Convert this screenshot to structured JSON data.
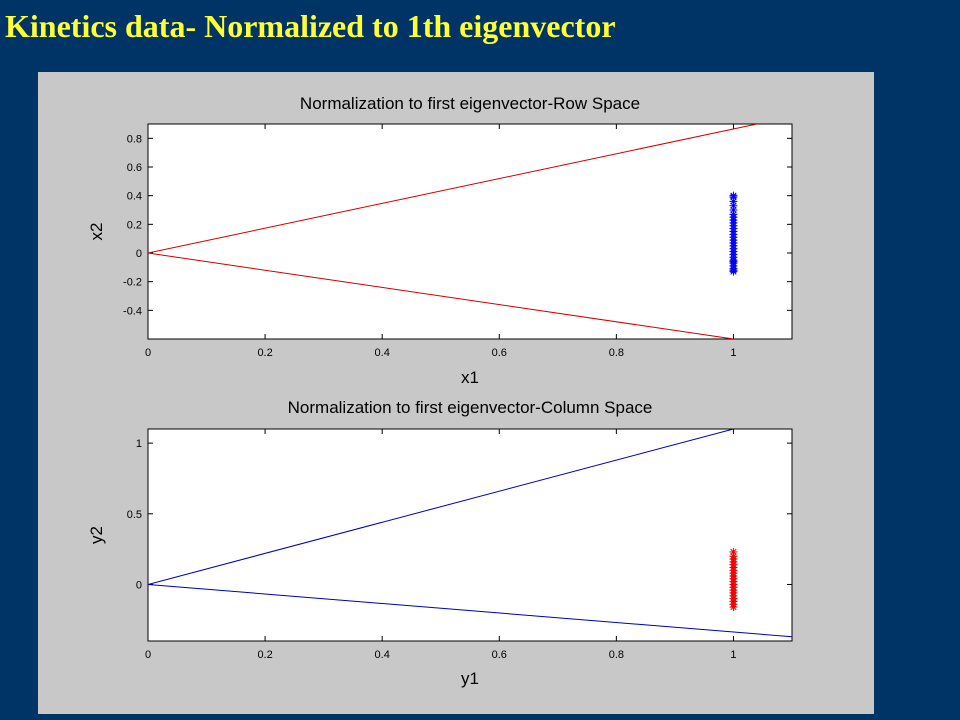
{
  "slide": {
    "title": "Kinetics data- Normalized to 1th eigenvector"
  },
  "colors": {
    "background": "#003366",
    "title": "#ffff33",
    "figure": "#c8c8c8",
    "red": "#cc0000",
    "blue": "#0000cc"
  },
  "chart_data": [
    {
      "type": "line",
      "title": "Normalization to first eigenvector-Row Space",
      "xlabel": "x1",
      "ylabel": "x2",
      "xlim": [
        0,
        1.1
      ],
      "ylim": [
        -0.6,
        0.9
      ],
      "xticks": [
        0,
        0.2,
        0.4,
        0.6,
        0.8,
        1
      ],
      "xtick_labels": [
        "0",
        "0.2",
        "0.4",
        "0.6",
        "0.8",
        "1"
      ],
      "yticks": [
        -0.4,
        -0.2,
        0,
        0.2,
        0.4,
        0.6,
        0.8
      ],
      "ytick_labels": [
        "-0.4",
        "-0.2",
        "0",
        "0.2",
        "0.4",
        "0.6",
        "0.8"
      ],
      "grid": false,
      "lines": [
        {
          "color": "#cc0000",
          "x": [
            0,
            1.04
          ],
          "y": [
            0,
            0.9
          ]
        },
        {
          "color": "#cc0000",
          "x": [
            0,
            1.0
          ],
          "y": [
            0,
            -0.6
          ]
        }
      ],
      "scatter": {
        "color": "#0000ee",
        "marker": "*",
        "x": [
          1,
          1,
          1,
          1,
          1,
          1,
          1,
          1,
          1,
          1,
          1,
          1,
          1,
          1,
          1,
          1,
          1,
          1,
          1,
          1,
          1,
          1,
          1,
          1,
          1,
          1,
          1,
          1
        ],
        "y": [
          -0.13,
          -0.11,
          -0.09,
          -0.07,
          -0.05,
          -0.03,
          -0.01,
          0.01,
          0.03,
          0.05,
          0.07,
          0.09,
          0.11,
          0.13,
          0.15,
          0.17,
          0.19,
          0.21,
          0.23,
          0.25,
          0.27,
          0.3,
          0.33,
          0.36,
          0.39,
          0.4,
          -0.12,
          -0.06
        ]
      }
    },
    {
      "type": "line",
      "title": "Normalization to first eigenvector-Column Space",
      "xlabel": "y1",
      "ylabel": "y2",
      "xlim": [
        0,
        1.1
      ],
      "ylim": [
        -0.4,
        1.1
      ],
      "xticks": [
        0,
        0.2,
        0.4,
        0.6,
        0.8,
        1
      ],
      "xtick_labels": [
        "0",
        "0.2",
        "0.4",
        "0.6",
        "0.8",
        "1"
      ],
      "yticks": [
        0,
        0.5,
        1
      ],
      "ytick_labels": [
        "0",
        "0.5",
        "1"
      ],
      "grid": false,
      "lines": [
        {
          "color": "#0000aa",
          "x": [
            0,
            1.0
          ],
          "y": [
            0,
            1.1
          ]
        },
        {
          "color": "#0000aa",
          "x": [
            0,
            1.1
          ],
          "y": [
            0,
            -0.37
          ]
        }
      ],
      "scatter": {
        "color": "#ee0000",
        "marker": "*",
        "x": [
          1,
          1,
          1,
          1,
          1,
          1,
          1,
          1,
          1,
          1,
          1,
          1,
          1,
          1,
          1,
          1,
          1,
          1,
          1,
          1
        ],
        "y": [
          -0.16,
          -0.14,
          -0.12,
          -0.1,
          -0.08,
          -0.06,
          -0.04,
          -0.02,
          0,
          0.02,
          0.04,
          0.06,
          0.08,
          0.1,
          0.12,
          0.14,
          0.16,
          0.18,
          0.2,
          0.23
        ]
      }
    }
  ]
}
